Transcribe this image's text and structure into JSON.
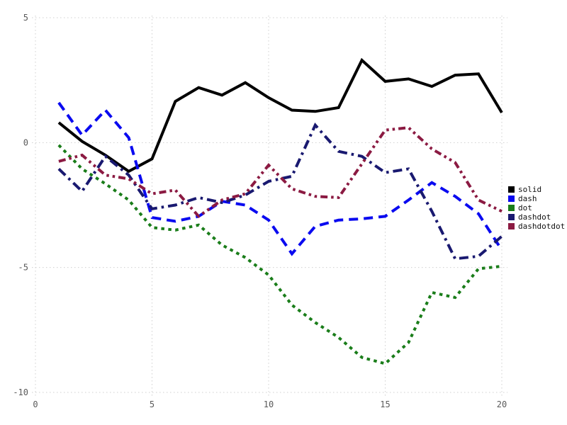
{
  "chart_data": {
    "type": "line",
    "title": "",
    "xlabel": "",
    "ylabel": "",
    "xlim": [
      0,
      20
    ],
    "ylim": [
      -10,
      5
    ],
    "grid": true,
    "grid_style": "dotted",
    "legend_position": "right",
    "x_ticks": [
      0,
      5,
      10,
      15,
      20
    ],
    "y_ticks": [
      5,
      0,
      -5,
      -10
    ],
    "tick_label_color": "#5a5a5a",
    "x": [
      1,
      2,
      3,
      4,
      5,
      6,
      7,
      8,
      9,
      10,
      11,
      12,
      13,
      14,
      15,
      16,
      17,
      18,
      19,
      20
    ],
    "series": [
      {
        "name": "solid",
        "color": "#000000",
        "style": "solid",
        "values": [
          0.8,
          0.05,
          -0.5,
          -1.15,
          -0.65,
          1.65,
          2.2,
          1.9,
          2.4,
          1.8,
          1.3,
          1.25,
          1.4,
          3.3,
          2.45,
          2.55,
          2.25,
          2.7,
          2.75,
          1.2
        ]
      },
      {
        "name": "dash",
        "color": "#0a0af0",
        "style": "dash",
        "values": [
          1.6,
          0.3,
          1.3,
          0.2,
          -3.0,
          -3.15,
          -2.95,
          -2.35,
          -2.5,
          -3.1,
          -4.45,
          -3.35,
          -3.1,
          -3.05,
          -2.95,
          -2.3,
          -1.6,
          -2.15,
          -2.85,
          -4.3
        ]
      },
      {
        "name": "dot",
        "color": "#1a7d1a",
        "style": "dot",
        "values": [
          -0.1,
          -1.05,
          -1.65,
          -2.3,
          -3.4,
          -3.5,
          -3.3,
          -4.1,
          -4.6,
          -5.3,
          -6.5,
          -7.2,
          -7.8,
          -8.6,
          -8.85,
          -8.0,
          -6.0,
          -6.2,
          -5.05,
          -4.95
        ]
      },
      {
        "name": "dashdot",
        "color": "#191970",
        "style": "dashdot",
        "values": [
          -1.05,
          -1.95,
          -0.55,
          -1.3,
          -2.65,
          -2.5,
          -2.2,
          -2.4,
          -2.1,
          -1.55,
          -1.35,
          0.7,
          -0.35,
          -0.55,
          -1.2,
          -1.05,
          -2.75,
          -4.65,
          -4.55,
          -3.75
        ]
      },
      {
        "name": "dashdotdot",
        "color": "#8b1a42",
        "style": "dashdotdot",
        "values": [
          -0.75,
          -0.5,
          -1.3,
          -1.45,
          -2.05,
          -1.9,
          -2.95,
          -2.3,
          -2.05,
          -0.9,
          -1.85,
          -2.15,
          -2.2,
          -0.85,
          0.5,
          0.6,
          -0.25,
          -0.8,
          -2.3,
          -2.75
        ]
      }
    ]
  }
}
